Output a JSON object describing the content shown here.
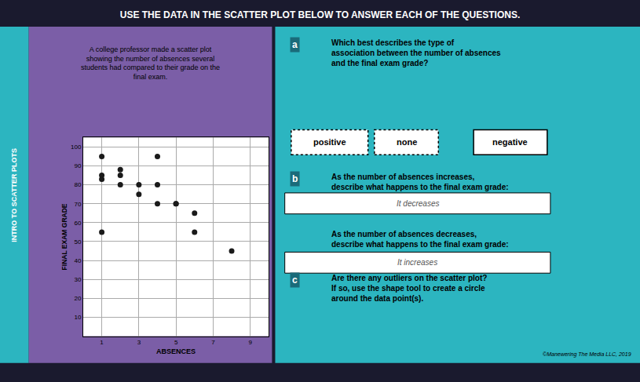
{
  "chart_data": {
    "type": "scatter",
    "title": "USE THE DATA IN THE SCATTER PLOT BELOW TO ANSWER EACH OF THE QUESTIONS.",
    "subtitle": "A college professor made a scatter plot\nshowing the number of absences several\nstudents had compared to their grade on the\nfinal exam.",
    "xlabel": "ABSENCES",
    "ylabel": "FINAL EXAM GRADE",
    "x": [
      1,
      1,
      1,
      1,
      2,
      2,
      2,
      3,
      3,
      4,
      4,
      4,
      5,
      5,
      6,
      6,
      8
    ],
    "values": [
      95,
      85,
      83,
      55,
      88,
      85,
      80,
      80,
      75,
      95,
      80,
      70,
      70,
      70,
      65,
      55,
      45
    ],
    "color": "#1a1a1a",
    "xlim": [
      0,
      10
    ],
    "ylim": [
      0,
      105
    ],
    "xticks": [
      1,
      3,
      5,
      7,
      9
    ],
    "yticks": [
      10,
      20,
      30,
      40,
      50,
      60,
      70,
      80,
      90,
      100
    ],
    "grid": true,
    "annotations": [
      "INTRO TO SCATTER PLOTS",
      "a",
      "Which best describes the type of\nassociation between the number of absences\nand the final exam grade?",
      "positive",
      "none",
      "negative",
      "b",
      "As the number of absences increases,\ndescribe what happens to the final exam grade:",
      "It decreases",
      "As the number of absences decreases,\ndescribe what happens to the final exam grade:",
      "It increases",
      "c",
      "Are there any outliers on the scatter plot?\nIf so, use the shape tool to create a circle\naround the data point(s).",
      "©Manewering The Media LLC, 2019"
    ]
  }
}
